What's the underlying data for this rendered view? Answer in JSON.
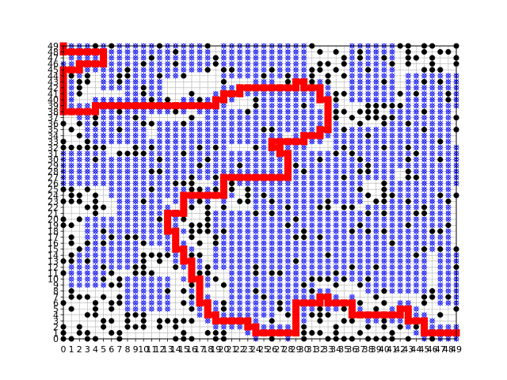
{
  "chart_data": {
    "type": "grid-path",
    "xlim": [
      0,
      49
    ],
    "ylim": [
      0,
      49
    ],
    "xticks": [
      "0",
      "1",
      "2",
      "3",
      "4",
      "5",
      "6",
      "7",
      "8",
      "9",
      "10",
      "11",
      "12",
      "13",
      "14",
      "15",
      "16",
      "17",
      "18",
      "19",
      "20",
      "21",
      "22",
      "23",
      "24",
      "25",
      "26",
      "27",
      "28",
      "29",
      "30",
      "31",
      "32",
      "33",
      "34",
      "35",
      "36",
      "37",
      "38",
      "39",
      "40",
      "41",
      "42",
      "43",
      "44",
      "45",
      "46",
      "47",
      "48",
      "49"
    ],
    "yticks": [
      "0",
      "1",
      "2",
      "3",
      "4",
      "5",
      "6",
      "7",
      "8",
      "9",
      "10",
      "11",
      "12",
      "13",
      "14",
      "15",
      "16",
      "17",
      "18",
      "19",
      "20",
      "21",
      "22",
      "23",
      "24",
      "25",
      "26",
      "27",
      "28",
      "29",
      "30",
      "31",
      "32",
      "33",
      "34",
      "35",
      "36",
      "37",
      "38",
      "39",
      "40",
      "41",
      "42",
      "43",
      "44",
      "45",
      "46",
      "47",
      "48",
      "49"
    ],
    "grid": true,
    "colors": {
      "obstacle": "#000000",
      "visited": "#0000ff",
      "path": "#ff0000",
      "grid": "#b0b0b0",
      "background": "#ffffff"
    },
    "path": [
      [
        0,
        49
      ],
      [
        0,
        48
      ],
      [
        1,
        48
      ],
      [
        2,
        48
      ],
      [
        3,
        48
      ],
      [
        4,
        48
      ],
      [
        5,
        48
      ],
      [
        5,
        47
      ],
      [
        5,
        46
      ],
      [
        4,
        46
      ],
      [
        3,
        46
      ],
      [
        2,
        46
      ],
      [
        2,
        45
      ],
      [
        1,
        45
      ],
      [
        0,
        45
      ],
      [
        0,
        44
      ],
      [
        0,
        43
      ],
      [
        0,
        42
      ],
      [
        0,
        41
      ],
      [
        0,
        40
      ],
      [
        0,
        39
      ],
      [
        0,
        38
      ],
      [
        1,
        38
      ],
      [
        2,
        38
      ],
      [
        3,
        38
      ],
      [
        4,
        38
      ],
      [
        4,
        39
      ],
      [
        5,
        39
      ],
      [
        6,
        39
      ],
      [
        7,
        39
      ],
      [
        8,
        39
      ],
      [
        9,
        39
      ],
      [
        10,
        39
      ],
      [
        11,
        39
      ],
      [
        12,
        39
      ],
      [
        13,
        39
      ],
      [
        14,
        39
      ],
      [
        15,
        39
      ],
      [
        16,
        39
      ],
      [
        17,
        39
      ],
      [
        18,
        39
      ],
      [
        19,
        39
      ],
      [
        19,
        40
      ],
      [
        20,
        40
      ],
      [
        20,
        41
      ],
      [
        21,
        41
      ],
      [
        22,
        41
      ],
      [
        22,
        42
      ],
      [
        23,
        42
      ],
      [
        24,
        42
      ],
      [
        25,
        42
      ],
      [
        26,
        42
      ],
      [
        27,
        42
      ],
      [
        28,
        42
      ],
      [
        29,
        42
      ],
      [
        29,
        43
      ],
      [
        30,
        43
      ],
      [
        30,
        42
      ],
      [
        31,
        42
      ],
      [
        32,
        42
      ],
      [
        32,
        41
      ],
      [
        32,
        40
      ],
      [
        33,
        40
      ],
      [
        33,
        39
      ],
      [
        33,
        38
      ],
      [
        33,
        37
      ],
      [
        33,
        36
      ],
      [
        33,
        35
      ],
      [
        32,
        35
      ],
      [
        32,
        34
      ],
      [
        31,
        34
      ],
      [
        30,
        34
      ],
      [
        30,
        33
      ],
      [
        29,
        33
      ],
      [
        28,
        33
      ],
      [
        27,
        33
      ],
      [
        26,
        33
      ],
      [
        26,
        32
      ],
      [
        27,
        32
      ],
      [
        27,
        31
      ],
      [
        28,
        31
      ],
      [
        28,
        30
      ],
      [
        28,
        29
      ],
      [
        28,
        28
      ],
      [
        28,
        27
      ],
      [
        27,
        27
      ],
      [
        26,
        27
      ],
      [
        25,
        27
      ],
      [
        24,
        27
      ],
      [
        23,
        27
      ],
      [
        22,
        27
      ],
      [
        21,
        27
      ],
      [
        20,
        27
      ],
      [
        20,
        26
      ],
      [
        20,
        25
      ],
      [
        20,
        24
      ],
      [
        19,
        24
      ],
      [
        18,
        24
      ],
      [
        17,
        24
      ],
      [
        16,
        24
      ],
      [
        15,
        24
      ],
      [
        15,
        23
      ],
      [
        15,
        22
      ],
      [
        15,
        21
      ],
      [
        14,
        21
      ],
      [
        13,
        21
      ],
      [
        13,
        20
      ],
      [
        13,
        19
      ],
      [
        13,
        18
      ],
      [
        14,
        18
      ],
      [
        14,
        17
      ],
      [
        14,
        16
      ],
      [
        14,
        15
      ],
      [
        15,
        15
      ],
      [
        15,
        14
      ],
      [
        15,
        13
      ],
      [
        16,
        13
      ],
      [
        16,
        12
      ],
      [
        16,
        11
      ],
      [
        16,
        10
      ],
      [
        17,
        10
      ],
      [
        17,
        9
      ],
      [
        17,
        8
      ],
      [
        17,
        7
      ],
      [
        17,
        6
      ],
      [
        18,
        6
      ],
      [
        18,
        5
      ],
      [
        18,
        4
      ],
      [
        19,
        4
      ],
      [
        19,
        3
      ],
      [
        20,
        3
      ],
      [
        21,
        3
      ],
      [
        22,
        3
      ],
      [
        23,
        3
      ],
      [
        23,
        2
      ],
      [
        24,
        2
      ],
      [
        24,
        1
      ],
      [
        25,
        1
      ],
      [
        26,
        1
      ],
      [
        27,
        1
      ],
      [
        28,
        1
      ],
      [
        29,
        1
      ],
      [
        29,
        2
      ],
      [
        29,
        3
      ],
      [
        29,
        4
      ],
      [
        29,
        5
      ],
      [
        29,
        6
      ],
      [
        30,
        6
      ],
      [
        31,
        6
      ],
      [
        32,
        6
      ],
      [
        32,
        7
      ],
      [
        33,
        7
      ],
      [
        33,
        6
      ],
      [
        34,
        6
      ],
      [
        35,
        6
      ],
      [
        36,
        6
      ],
      [
        36,
        5
      ],
      [
        36,
        4
      ],
      [
        37,
        4
      ],
      [
        38,
        4
      ],
      [
        39,
        4
      ],
      [
        40,
        4
      ],
      [
        41,
        4
      ],
      [
        42,
        4
      ],
      [
        42,
        5
      ],
      [
        43,
        5
      ],
      [
        43,
        4
      ],
      [
        43,
        3
      ],
      [
        44,
        3
      ],
      [
        45,
        3
      ],
      [
        45,
        2
      ],
      [
        45,
        1
      ],
      [
        46,
        1
      ],
      [
        47,
        1
      ],
      [
        48,
        1
      ],
      [
        49,
        1
      ]
    ],
    "visited_regions": [
      [
        5,
        49,
        9,
        42
      ],
      [
        8,
        44,
        12,
        38
      ],
      [
        10,
        49,
        14,
        44
      ],
      [
        3,
        37,
        10,
        33
      ],
      [
        0,
        31,
        5,
        26
      ],
      [
        6,
        30,
        14,
        24
      ],
      [
        12,
        36,
        20,
        27
      ],
      [
        18,
        38,
        26,
        33
      ],
      [
        21,
        31,
        28,
        26
      ],
      [
        25,
        41,
        31,
        35
      ],
      [
        29,
        31,
        37,
        23
      ],
      [
        34,
        35,
        41,
        27
      ],
      [
        36,
        49,
        41,
        40
      ],
      [
        41,
        38,
        48,
        29
      ],
      [
        44,
        32,
        49,
        26
      ],
      [
        41,
        26,
        48,
        15
      ],
      [
        47,
        14,
        49,
        6
      ],
      [
        38,
        22,
        45,
        8
      ],
      [
        31,
        21,
        37,
        11
      ],
      [
        24,
        26,
        31,
        12
      ],
      [
        26,
        11,
        31,
        7
      ],
      [
        33,
        16,
        38,
        10
      ],
      [
        19,
        21,
        24,
        12
      ],
      [
        21,
        11,
        26,
        4
      ],
      [
        3,
        20,
        9,
        12
      ],
      [
        7,
        23,
        12,
        16
      ],
      [
        1,
        14,
        5,
        9
      ],
      [
        8,
        10,
        13,
        5
      ],
      [
        20,
        49,
        30,
        44
      ],
      [
        12,
        49,
        18,
        45
      ],
      [
        43,
        44,
        49,
        39
      ],
      [
        10,
        33,
        14,
        29
      ]
    ],
    "obstacle_density": 0.3,
    "seed": 17
  }
}
